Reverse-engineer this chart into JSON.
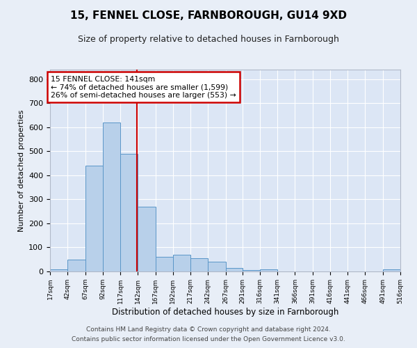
{
  "title1": "15, FENNEL CLOSE, FARNBOROUGH, GU14 9XD",
  "title2": "Size of property relative to detached houses in Farnborough",
  "xlabel": "Distribution of detached houses by size in Farnborough",
  "ylabel": "Number of detached properties",
  "footer1": "Contains HM Land Registry data © Crown copyright and database right 2024.",
  "footer2": "Contains public sector information licensed under the Open Government Licence v3.0.",
  "bar_edges": [
    17,
    42,
    67,
    92,
    117,
    142,
    167,
    192,
    217,
    242,
    267,
    291,
    316,
    341,
    366,
    391,
    416,
    441,
    466,
    491,
    516
  ],
  "bar_heights": [
    10,
    50,
    440,
    620,
    490,
    270,
    60,
    70,
    55,
    40,
    15,
    5,
    8,
    0,
    0,
    0,
    0,
    0,
    0,
    10
  ],
  "bar_color": "#b8d0ea",
  "bar_edge_color": "#5a96c8",
  "property_size": 141,
  "annotation_title": "15 FENNEL CLOSE: 141sqm",
  "annotation_line1": "← 74% of detached houses are smaller (1,599)",
  "annotation_line2": "26% of semi-detached houses are larger (553) →",
  "annotation_box_color": "#cc0000",
  "vline_color": "#cc0000",
  "ylim": [
    0,
    840
  ],
  "yticks": [
    0,
    100,
    200,
    300,
    400,
    500,
    600,
    700,
    800
  ],
  "bg_color": "#e8eef7",
  "plot_bg_color": "#dce6f5",
  "title1_fontsize": 11,
  "title2_fontsize": 9
}
